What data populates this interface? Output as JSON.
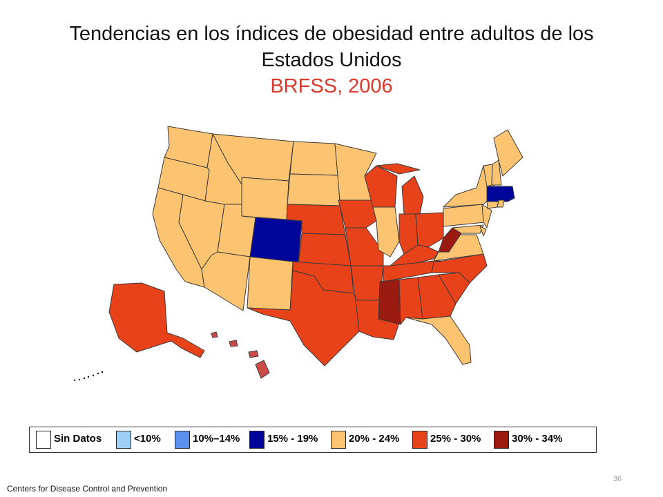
{
  "title": {
    "line1": "Tendencias en los índices de obesidad entre adultos de los",
    "line2": "Estados Unidos",
    "subtitle": "BRFSS, 2006",
    "subtitle_color": "#d93a2b"
  },
  "legend": {
    "items": [
      {
        "label": "Sin Datos",
        "color": "#ffffff"
      },
      {
        "label": "<10%",
        "color": "#9dd0f7"
      },
      {
        "label": "10%–14%",
        "color": "#5b8ff0"
      },
      {
        "label": "15% - 19%",
        "color": "#00069a"
      },
      {
        "label": "20% - 24%",
        "color": "#fcc471"
      },
      {
        "label": "25% - 30%",
        "color": "#e8421a"
      },
      {
        "label": "30% - 34%",
        "color": "#9b1b10"
      }
    ]
  },
  "map": {
    "categories": {
      "20% - 24%": [
        "WA",
        "OR",
        "CA",
        "NV",
        "ID",
        "MT",
        "WY",
        "UT",
        "AZ",
        "NM",
        "ND",
        "SD",
        "MN",
        "IL",
        "NY",
        "VT",
        "NH",
        "ME",
        "PA",
        "NJ",
        "VA",
        "FL",
        "MD",
        "CT",
        "RI",
        "DE"
      ],
      "25% - 30%": [
        "AK",
        "NE",
        "KS",
        "OK",
        "TX",
        "IA",
        "MO",
        "AR",
        "LA",
        "WI",
        "MI",
        "IN",
        "OH",
        "KY",
        "TN",
        "AL",
        "GA",
        "SC",
        "NC"
      ],
      "30% - 34%": [
        "MS",
        "WV"
      ],
      "15% - 19%": [
        "CO",
        "MA"
      ],
      "hawaii_color": "#cc4a48"
    }
  },
  "footer": "Centers for Disease Control and Prevention",
  "page_number": "36"
}
